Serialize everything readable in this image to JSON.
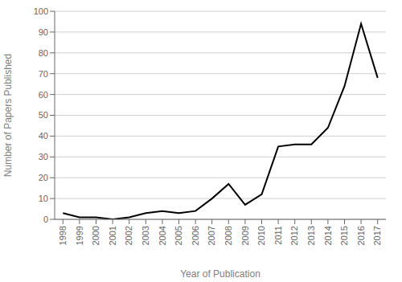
{
  "chart_data": {
    "type": "line",
    "x": [
      1998,
      1999,
      2000,
      2001,
      2002,
      2003,
      2004,
      2005,
      2006,
      2007,
      2008,
      2009,
      2010,
      2011,
      2012,
      2013,
      2014,
      2015,
      2016,
      2017
    ],
    "values": [
      3,
      1,
      1,
      0,
      1,
      3,
      4,
      3,
      4,
      10,
      17,
      7,
      12,
      35,
      36,
      36,
      44,
      64,
      94,
      68
    ],
    "xlabel": "Year of Publication",
    "ylabel": "Number of Papers Published",
    "xlim": [
      1997.5,
      2017.5
    ],
    "xticks": [
      1998,
      1999,
      2000,
      2001,
      2002,
      2003,
      2004,
      2005,
      2006,
      2007,
      2008,
      2009,
      2010,
      2011,
      2012,
      2013,
      2014,
      2015,
      2016,
      2017
    ],
    "ylim": [
      0,
      100
    ],
    "yticks": [
      0,
      10,
      20,
      30,
      40,
      50,
      60,
      70,
      80,
      90,
      100
    ],
    "color": "#000000",
    "grid": true
  }
}
